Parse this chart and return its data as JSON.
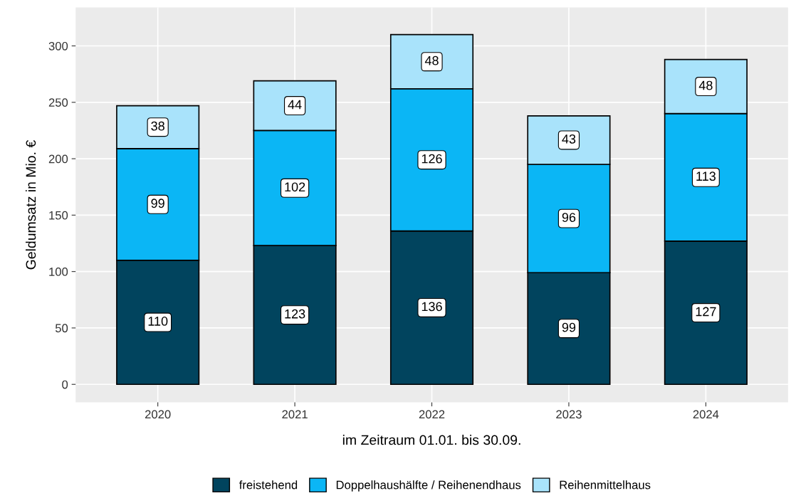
{
  "chart_data": {
    "type": "bar",
    "stacked": true,
    "xlabel": "im Zeitraum 01.01. bis 30.09.",
    "ylabel": "Geldumsatz in Mio. €",
    "categories": [
      "2020",
      "2021",
      "2022",
      "2023",
      "2024"
    ],
    "series": [
      {
        "name": "freistehend",
        "color": "#01445e",
        "values": [
          110,
          123,
          136,
          99,
          127
        ]
      },
      {
        "name": "Doppelhaushälfte / Reihenendhaus",
        "color": "#0bb6f5",
        "values": [
          99,
          102,
          126,
          96,
          113
        ]
      },
      {
        "name": "Reihenmittelhaus",
        "color": "#a9e3fb",
        "values": [
          38,
          44,
          48,
          43,
          48
        ]
      }
    ],
    "ylim": [
      -16,
      334
    ],
    "yticks": [
      0,
      50,
      100,
      150,
      200,
      250,
      300
    ],
    "grid": true,
    "legend": "bottom",
    "data_labels": true
  }
}
